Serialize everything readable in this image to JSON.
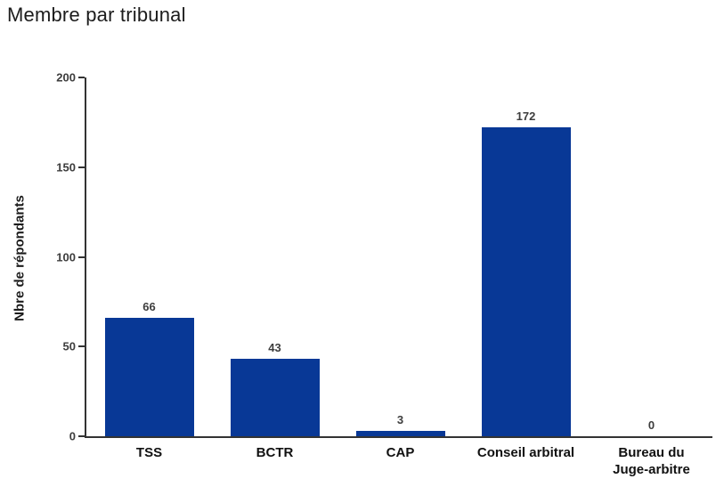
{
  "chart_data": {
    "type": "bar",
    "title": "Membre par tribunal",
    "categories": [
      "TSS",
      "BCTR",
      "CAP",
      "Conseil arbitral",
      "Bureau du Juge-arbitre"
    ],
    "values": [
      66,
      43,
      3,
      172,
      0
    ],
    "data_labels": [
      "66",
      "43",
      "3",
      "172",
      "0"
    ],
    "xlabel": "",
    "ylabel": "Nbre de répondants",
    "ylim": [
      0,
      200
    ],
    "yticks": [
      0,
      50,
      100,
      150,
      200
    ],
    "grid": false,
    "legend": "none",
    "bar_color": "#083896",
    "axis_color": "#333333",
    "label_color": "#3d3d3d",
    "category_label_color": "#111111"
  }
}
